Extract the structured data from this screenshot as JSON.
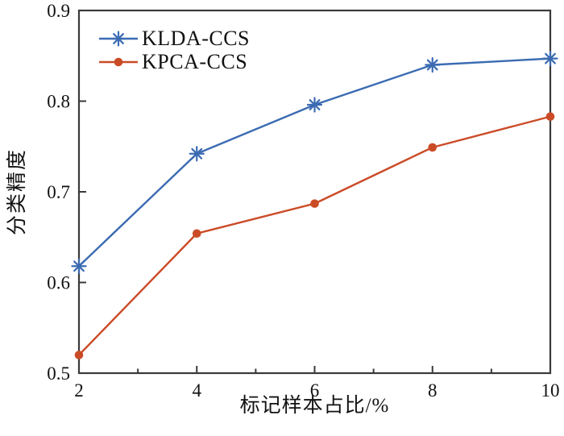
{
  "chart_data": {
    "type": "line",
    "title": "",
    "xlabel": "标记样本占比/%",
    "ylabel": "分类精度",
    "x": [
      2,
      4,
      6,
      8,
      10
    ],
    "xlim": [
      2,
      10
    ],
    "ylim": [
      0.5,
      0.9
    ],
    "xticks": [
      2,
      4,
      6,
      8,
      10
    ],
    "xtick_labels": [
      "2",
      "4",
      "6",
      "8",
      "10"
    ],
    "x_minor_ticks": [
      3,
      5,
      7,
      9
    ],
    "yticks": [
      0.5,
      0.6,
      0.7,
      0.8,
      0.9
    ],
    "ytick_labels": [
      "0.5",
      "0.6",
      "0.7",
      "0.8",
      "0.9"
    ],
    "grid": false,
    "legend_position": "top-left",
    "axis_color": "#3a3a3a",
    "series": [
      {
        "name": "KLDA-CCS",
        "color": "#3b6bb2",
        "marker": "asterisk",
        "values": [
          0.618,
          0.742,
          0.796,
          0.84,
          0.847
        ]
      },
      {
        "name": "KPCA-CCS",
        "color": "#cb4b27",
        "marker": "circle",
        "values": [
          0.52,
          0.654,
          0.687,
          0.749,
          0.783
        ]
      }
    ]
  }
}
